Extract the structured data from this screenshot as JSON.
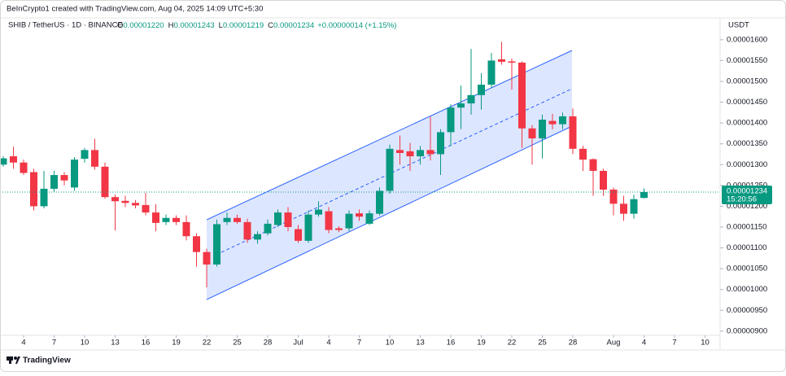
{
  "header": {
    "caption": "BeInCrypto1 created with TradingView.com, Aug 04, 2025 14:09 UTC+5:30",
    "symbol": "SHIB / TetherUS · 1D · BINANCE",
    "ohlc": [
      {
        "key": "O",
        "value": "0.00001220"
      },
      {
        "key": "H",
        "value": "0.00001243"
      },
      {
        "key": "L",
        "value": "0.00001219"
      },
      {
        "key": "C",
        "value": "0.00001234"
      }
    ],
    "change": "+0.00000014 (+1.15%)",
    "currency": "USDT"
  },
  "footer": {
    "brand": "TradingView"
  },
  "chart_data": {
    "type": "candlestick",
    "up_color": "#089981",
    "down_color": "#f23645",
    "open": [
      1.3e-05,
      1.32e-05,
      1.305e-05,
      1.282e-05,
      1.2e-05,
      1.242e-05,
      1.275e-05,
      1.245e-05,
      1.314e-05,
      1.335e-05,
      1.295e-05,
      1.222e-05,
      1.213e-05,
      1.208e-05,
      1.203e-05,
      1.185e-05,
      1.162e-05,
      1.172e-05,
      1.162e-05,
      1.128e-05,
      1.09e-05,
      1.06e-05,
      1.162e-05,
      1.172e-05,
      1.162e-05,
      1.12e-05,
      1.135e-05,
      1.155e-05,
      1.185e-05,
      1.145e-05,
      1.117e-05,
      1.18e-05,
      1.188e-05,
      1.147e-05,
      1.147e-05,
      1.183e-05,
      1.158e-05,
      1.182e-05,
      1.237e-05,
      1.335e-05,
      1.332e-05,
      1.32e-05,
      1.335e-05,
      1.325e-05,
      1.378e-05,
      1.437e-05,
      1.447e-05,
      1.467e-05,
      1.492e-05,
      1.553e-05,
      1.548e-05,
      1.545e-05,
      1.387e-05,
      1.363e-05,
      1.405e-05,
      1.397e-05,
      1.416e-05,
      1.338e-05,
      1.313e-05,
      1.285e-05,
      1.24e-05,
      1.206e-05,
      1.182e-05,
      1.22e-05
    ],
    "high": [
      1.32e-05,
      1.343e-05,
      1.312e-05,
      1.29e-05,
      1.285e-05,
      1.285e-05,
      1.282e-05,
      1.318e-05,
      1.34e-05,
      1.362e-05,
      1.305e-05,
      1.228e-05,
      1.225e-05,
      1.215e-05,
      1.232e-05,
      1.205e-05,
      1.18e-05,
      1.178e-05,
      1.178e-05,
      1.135e-05,
      1.098e-05,
      1.168e-05,
      1.185e-05,
      1.18e-05,
      1.17e-05,
      1.14e-05,
      1.168e-05,
      1.192e-05,
      1.198e-05,
      1.155e-05,
      1.19e-05,
      1.212e-05,
      1.198e-05,
      1.152e-05,
      1.19e-05,
      1.192e-05,
      1.19e-05,
      1.245e-05,
      1.348e-05,
      1.37e-05,
      1.352e-05,
      1.345e-05,
      1.415e-05,
      1.385e-05,
      1.445e-05,
      1.49e-05,
      1.578e-05,
      1.52e-05,
      1.568e-05,
      1.595e-05,
      1.555e-05,
      1.548e-05,
      1.395e-05,
      1.42e-05,
      1.422e-05,
      1.425e-05,
      1.435e-05,
      1.345e-05,
      1.315e-05,
      1.29e-05,
      1.245e-05,
      1.225e-05,
      1.228e-05,
      1.243e-05
    ],
    "low": [
      1.295e-05,
      1.29e-05,
      1.275e-05,
      1.19e-05,
      1.195e-05,
      1.235e-05,
      1.25e-05,
      1.237e-05,
      1.305e-05,
      1.288e-05,
      1.218e-05,
      1.142e-05,
      1.198e-05,
      1.195e-05,
      1.178e-05,
      1.14e-05,
      1.155e-05,
      1.155e-05,
      1.118e-05,
      1.055e-05,
      1.005e-05,
      1.055e-05,
      1.155e-05,
      1.158e-05,
      1.112e-05,
      1.11e-05,
      1.13e-05,
      1.15e-05,
      1.14e-05,
      1.112e-05,
      1.112e-05,
      1.175e-05,
      1.135e-05,
      1.138e-05,
      1.14e-05,
      1.165e-05,
      1.155e-05,
      1.178e-05,
      1.23e-05,
      1.3e-05,
      1.285e-05,
      1.3e-05,
      1.31e-05,
      1.275e-05,
      1.345e-05,
      1.385e-05,
      1.42e-05,
      1.432e-05,
      1.484e-05,
      1.54e-05,
      1.48e-05,
      1.34e-05,
      1.3e-05,
      1.315e-05,
      1.385e-05,
      1.385e-05,
      1.325e-05,
      1.285e-05,
      1.225e-05,
      1.225e-05,
      1.178e-05,
      1.165e-05,
      1.17e-05,
      1.219e-05
    ],
    "close": [
      1.315e-05,
      1.305e-05,
      1.28e-05,
      1.2e-05,
      1.242e-05,
      1.275e-05,
      1.262e-05,
      1.312e-05,
      1.335e-05,
      1.295e-05,
      1.222e-05,
      1.212e-05,
      1.208e-05,
      1.202e-05,
      1.185e-05,
      1.16e-05,
      1.172e-05,
      1.162e-05,
      1.128e-05,
      1.09e-05,
      1.06e-05,
      1.157e-05,
      1.172e-05,
      1.162e-05,
      1.12e-05,
      1.133e-05,
      1.158e-05,
      1.185e-05,
      1.15e-05,
      1.117e-05,
      1.18e-05,
      1.192e-05,
      1.143e-05,
      1.143e-05,
      1.182e-05,
      1.175e-05,
      1.183e-05,
      1.237e-05,
      1.338e-05,
      1.328e-05,
      1.32e-05,
      1.335e-05,
      1.325e-05,
      1.378e-05,
      1.437e-05,
      1.447e-05,
      1.467e-05,
      1.492e-05,
      1.55e-05,
      1.547e-05,
      1.545e-05,
      1.387e-05,
      1.363e-05,
      1.408e-05,
      1.397e-05,
      1.416e-05,
      1.338e-05,
      1.312e-05,
      1.285e-05,
      1.24e-05,
      1.206e-05,
      1.182e-05,
      1.217e-05,
      1.234e-05
    ],
    "last_price_label": "0.00001234",
    "countdown": "15:20:56",
    "xlim": [
      -0.32,
      70.48
    ],
    "xticks": [
      {
        "value": 2,
        "label": "4"
      },
      {
        "value": 5,
        "label": "7"
      },
      {
        "value": 8,
        "label": "10"
      },
      {
        "value": 11,
        "label": "13"
      },
      {
        "value": 14,
        "label": "16"
      },
      {
        "value": 17,
        "label": "19"
      },
      {
        "value": 20,
        "label": "22"
      },
      {
        "value": 23,
        "label": "25"
      },
      {
        "value": 26,
        "label": "28"
      },
      {
        "value": 29,
        "label": "Jul"
      },
      {
        "value": 32,
        "label": "4"
      },
      {
        "value": 35,
        "label": "7"
      },
      {
        "value": 38,
        "label": "10"
      },
      {
        "value": 41,
        "label": "13"
      },
      {
        "value": 44,
        "label": "16"
      },
      {
        "value": 47,
        "label": "19"
      },
      {
        "value": 50,
        "label": "22"
      },
      {
        "value": 53,
        "label": "25"
      },
      {
        "value": 56,
        "label": "28"
      },
      {
        "value": 60,
        "label": "Aug"
      },
      {
        "value": 63,
        "label": "4"
      },
      {
        "value": 66,
        "label": "7"
      },
      {
        "value": 69,
        "label": "10"
      }
    ],
    "ylim": [
      8.9e-06,
      1.627e-05
    ],
    "yticks": [
      {
        "value": 1.6e-05,
        "label": "0.00001600"
      },
      {
        "value": 1.55e-05,
        "label": "0.00001550"
      },
      {
        "value": 1.5e-05,
        "label": "0.00001500"
      },
      {
        "value": 1.45e-05,
        "label": "0.00001450"
      },
      {
        "value": 1.4e-05,
        "label": "0.00001400"
      },
      {
        "value": 1.35e-05,
        "label": "0.00001350"
      },
      {
        "value": 1.3e-05,
        "label": "0.00001300"
      },
      {
        "value": 1.25e-05,
        "label": "0.00001250"
      },
      {
        "value": 1.2e-05,
        "label": "0.00001200"
      },
      {
        "value": 1.15e-05,
        "label": "0.00001150"
      },
      {
        "value": 1.1e-05,
        "label": "0.00001100"
      },
      {
        "value": 1.05e-05,
        "label": "0.00001050"
      },
      {
        "value": 1e-05,
        "label": "0.00001000"
      },
      {
        "value": 9.5e-06,
        "label": "0.00000950"
      },
      {
        "value": 9e-06,
        "label": "0.00000900"
      }
    ],
    "grid": false
  }
}
